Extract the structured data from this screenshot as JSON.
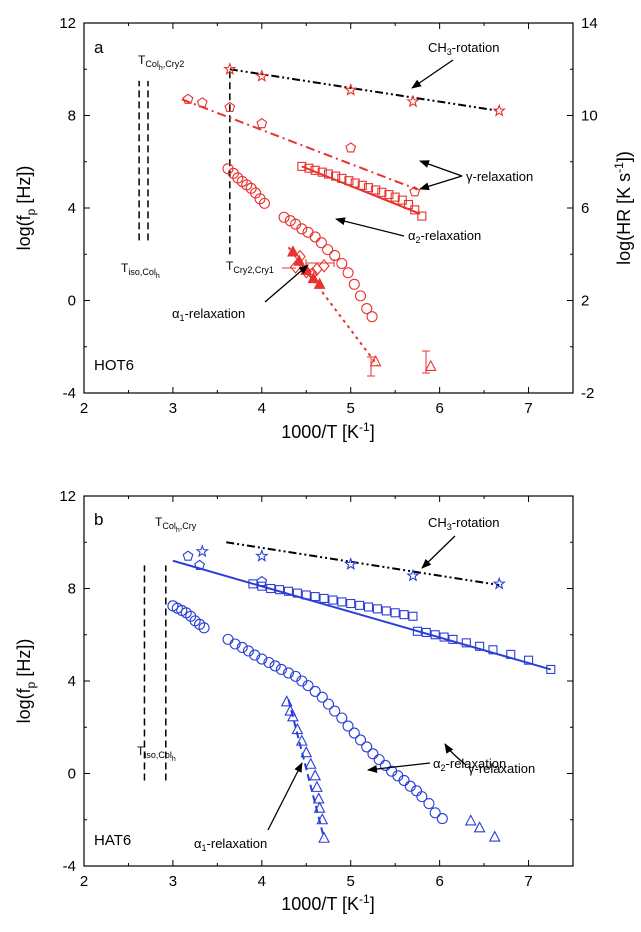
{
  "colors": {
    "hot6": "#e8322e",
    "hat6": "#2b3fd6",
    "black": "#000000"
  },
  "chart_data": [
    {
      "type": "scatter",
      "panel_label": "a",
      "sample": "HOT6",
      "xlabel_main": "1000/T [K",
      "xlabel_sup": "-1",
      "xlabel_end": "]",
      "ylabel_left": "log(f",
      "ylabel_left_sub": "p",
      "ylabel_left_end": " [Hz])",
      "ylabel_right": "log(HR [K s",
      "ylabel_right_sup": "-1",
      "ylabel_right_end": "])",
      "xlim": [
        2,
        7.5
      ],
      "ylim": [
        -4,
        12
      ],
      "y2lim": [
        -2,
        14
      ],
      "xticks": [
        "2",
        "3",
        "4",
        "5",
        "6",
        "7"
      ],
      "yticks": [
        "-4",
        "0",
        "4",
        "8",
        "12"
      ],
      "y2ticks": [
        "-2",
        "2",
        "6",
        "10",
        "14"
      ],
      "series": [
        {
          "marker": "star",
          "fill": false,
          "points": [
            [
              3.64,
              10.0
            ],
            [
              4.0,
              9.7
            ],
            [
              5.0,
              9.1
            ],
            [
              5.7,
              8.6
            ],
            [
              6.67,
              8.2
            ]
          ]
        },
        {
          "marker": "pentagon",
          "fill": false,
          "points": [
            [
              3.17,
              8.7
            ],
            [
              3.33,
              8.55
            ],
            [
              3.64,
              8.35
            ],
            [
              4.0,
              7.65
            ],
            [
              5.0,
              6.6
            ],
            [
              5.72,
              4.7
            ]
          ]
        },
        {
          "marker": "square",
          "fill": false,
          "points": [
            [
              4.45,
              5.8
            ],
            [
              4.53,
              5.72
            ],
            [
              4.6,
              5.63
            ],
            [
              4.68,
              5.55
            ],
            [
              4.75,
              5.47
            ],
            [
              4.83,
              5.38
            ],
            [
              4.9,
              5.28
            ],
            [
              4.98,
              5.18
            ],
            [
              5.05,
              5.08
            ],
            [
              5.13,
              4.98
            ],
            [
              5.2,
              4.88
            ],
            [
              5.28,
              4.78
            ],
            [
              5.35,
              4.68
            ],
            [
              5.43,
              4.58
            ],
            [
              5.5,
              4.47
            ],
            [
              5.58,
              4.34
            ],
            [
              5.65,
              4.15
            ],
            [
              5.72,
              3.92
            ],
            [
              5.8,
              3.65
            ]
          ]
        },
        {
          "marker": "circle",
          "fill": false,
          "points": [
            [
              3.62,
              5.7
            ],
            [
              3.68,
              5.5
            ],
            [
              3.73,
              5.3
            ],
            [
              3.78,
              5.15
            ],
            [
              3.83,
              5.0
            ],
            [
              3.88,
              4.85
            ],
            [
              3.93,
              4.65
            ],
            [
              3.98,
              4.4
            ],
            [
              4.03,
              4.2
            ],
            [
              4.25,
              3.6
            ],
            [
              4.32,
              3.45
            ],
            [
              4.38,
              3.3
            ],
            [
              4.45,
              3.1
            ],
            [
              4.52,
              2.95
            ],
            [
              4.6,
              2.75
            ],
            [
              4.67,
              2.5
            ],
            [
              4.74,
              2.2
            ],
            [
              4.82,
              1.95
            ],
            [
              4.9,
              1.6
            ],
            [
              4.97,
              1.2
            ],
            [
              5.04,
              0.7
            ],
            [
              5.11,
              0.2
            ],
            [
              5.18,
              -0.35
            ],
            [
              5.24,
              -0.7
            ]
          ]
        },
        {
          "marker": "triangle",
          "fill": true,
          "points": [
            [
              4.35,
              2.1
            ],
            [
              4.42,
              1.7
            ],
            [
              4.5,
              1.3
            ],
            [
              4.58,
              0.95
            ],
            [
              4.65,
              0.7
            ]
          ]
        },
        {
          "marker": "diamond",
          "fill": false,
          "points": [
            [
              4.38,
              1.45
            ],
            [
              4.43,
              1.9
            ],
            [
              4.5,
              1.25
            ],
            [
              4.57,
              1.15
            ],
            [
              4.62,
              1.35
            ],
            [
              4.7,
              1.5
            ]
          ]
        },
        {
          "marker": "triangle",
          "fill": false,
          "points": [
            [
              5.28,
              -2.65
            ],
            [
              5.9,
              -2.85
            ]
          ]
        }
      ],
      "fits": [
        {
          "style": "dash-dot-dot",
          "color": "black",
          "points": [
            [
              3.64,
              10.0
            ],
            [
              6.67,
              8.2
            ]
          ]
        },
        {
          "style": "dash-dot",
          "color": "hot6",
          "points": [
            [
              3.1,
              8.7
            ],
            [
              5.75,
              4.8
            ]
          ]
        },
        {
          "style": "solid",
          "color": "hot6",
          "points": [
            [
              4.45,
              5.8
            ],
            [
              5.78,
              3.75
            ]
          ]
        },
        {
          "style": "dotted",
          "color": "hot6",
          "points": [
            [
              4.3,
              2.3
            ],
            [
              5.3,
              -2.8
            ]
          ]
        }
      ],
      "transitions": [
        {
          "label_main": "T",
          "label_sub": "iso,Col",
          "label_subsub": "h",
          "x": 2.62
        },
        {
          "label_main": "T",
          "label_sub": "Col",
          "label_subsub": "h",
          "label_sub2": ",Cry2",
          "x": 2.72
        },
        {
          "label_main": "T",
          "label_sub": "Cry2,Cry1",
          "x": 3.64
        }
      ],
      "annotations": [
        {
          "text": "CH",
          "sub": "3",
          "rest": "-rotation"
        },
        {
          "text": "γ-relaxation"
        },
        {
          "text": "α",
          "sub": "2",
          "rest": "-relaxation"
        },
        {
          "text": "α",
          "sub": "1",
          "rest": "-relaxation"
        }
      ]
    },
    {
      "type": "scatter",
      "panel_label": "b",
      "sample": "HAT6",
      "xlabel_main": "1000/T [K",
      "xlabel_sup": "-1",
      "xlabel_end": "]",
      "ylabel_left": "log(f",
      "ylabel_left_sub": "p",
      "ylabel_left_end": " [Hz])",
      "xlim": [
        2,
        7.5
      ],
      "ylim": [
        -4,
        12
      ],
      "xticks": [
        "2",
        "3",
        "4",
        "5",
        "6",
        "7"
      ],
      "yticks": [
        "-4",
        "0",
        "4",
        "8",
        "12"
      ],
      "series": [
        {
          "marker": "star",
          "fill": false,
          "points": [
            [
              3.33,
              9.6
            ],
            [
              4.0,
              9.4
            ],
            [
              5.0,
              9.05
            ],
            [
              5.7,
              8.55
            ],
            [
              6.67,
              8.2
            ]
          ]
        },
        {
          "marker": "pentagon",
          "fill": false,
          "points": [
            [
              3.17,
              9.4
            ],
            [
              3.3,
              9.0
            ],
            [
              4.0,
              8.3
            ]
          ]
        },
        {
          "marker": "square",
          "fill": false,
          "points": [
            [
              3.9,
              8.2
            ],
            [
              4.0,
              8.1
            ],
            [
              4.1,
              8.0
            ],
            [
              4.2,
              7.95
            ],
            [
              4.3,
              7.88
            ],
            [
              4.4,
              7.8
            ],
            [
              4.5,
              7.72
            ],
            [
              4.6,
              7.65
            ],
            [
              4.7,
              7.57
            ],
            [
              4.8,
              7.5
            ],
            [
              4.9,
              7.42
            ],
            [
              5.0,
              7.35
            ],
            [
              5.1,
              7.27
            ],
            [
              5.2,
              7.2
            ],
            [
              5.3,
              7.12
            ],
            [
              5.4,
              7.03
            ],
            [
              5.5,
              6.95
            ],
            [
              5.6,
              6.87
            ],
            [
              5.7,
              6.8
            ],
            [
              5.75,
              6.15
            ],
            [
              5.85,
              6.1
            ],
            [
              5.95,
              6.0
            ],
            [
              6.05,
              5.9
            ],
            [
              6.15,
              5.8
            ],
            [
              6.3,
              5.65
            ],
            [
              6.45,
              5.5
            ],
            [
              6.6,
              5.35
            ],
            [
              6.8,
              5.15
            ],
            [
              7.0,
              4.9
            ],
            [
              7.25,
              4.5
            ]
          ]
        },
        {
          "marker": "circle",
          "fill": false,
          "points": [
            [
              3.0,
              7.25
            ],
            [
              3.05,
              7.15
            ],
            [
              3.1,
              7.05
            ],
            [
              3.15,
              6.95
            ],
            [
              3.2,
              6.8
            ],
            [
              3.25,
              6.6
            ],
            [
              3.3,
              6.45
            ],
            [
              3.35,
              6.3
            ],
            [
              3.62,
              5.8
            ],
            [
              3.7,
              5.6
            ],
            [
              3.78,
              5.45
            ],
            [
              3.85,
              5.3
            ],
            [
              3.92,
              5.12
            ],
            [
              4.0,
              4.95
            ],
            [
              4.08,
              4.8
            ],
            [
              4.15,
              4.65
            ],
            [
              4.22,
              4.5
            ],
            [
              4.3,
              4.35
            ],
            [
              4.38,
              4.2
            ],
            [
              4.45,
              4.0
            ],
            [
              4.52,
              3.8
            ],
            [
              4.6,
              3.55
            ],
            [
              4.68,
              3.3
            ],
            [
              4.75,
              3.0
            ],
            [
              4.82,
              2.7
            ],
            [
              4.9,
              2.4
            ],
            [
              4.97,
              2.05
            ],
            [
              5.04,
              1.75
            ],
            [
              5.11,
              1.45
            ],
            [
              5.18,
              1.15
            ],
            [
              5.25,
              0.85
            ],
            [
              5.32,
              0.6
            ],
            [
              5.39,
              0.35
            ],
            [
              5.46,
              0.1
            ],
            [
              5.53,
              -0.1
            ],
            [
              5.6,
              -0.3
            ],
            [
              5.67,
              -0.55
            ],
            [
              5.74,
              -0.75
            ],
            [
              5.8,
              -1.0
            ],
            [
              5.88,
              -1.3
            ],
            [
              5.95,
              -1.7
            ],
            [
              6.03,
              -1.95
            ]
          ]
        },
        {
          "marker": "triangle",
          "fill": false,
          "points": [
            [
              4.28,
              3.1
            ],
            [
              4.32,
              2.7
            ],
            [
              4.35,
              2.45
            ],
            [
              4.4,
              1.9
            ],
            [
              4.45,
              1.4
            ],
            [
              4.5,
              0.9
            ],
            [
              4.55,
              0.4
            ],
            [
              4.6,
              -0.1
            ],
            [
              4.62,
              -0.6
            ],
            [
              4.64,
              -1.1
            ],
            [
              4.65,
              -1.5
            ],
            [
              4.68,
              -2.0
            ],
            [
              4.7,
              -2.8
            ]
          ]
        },
        {
          "marker": "triangle",
          "fill": false,
          "points": [
            [
              6.35,
              -2.05
            ],
            [
              6.45,
              -2.35
            ],
            [
              6.62,
              -2.75
            ]
          ]
        }
      ],
      "fits": [
        {
          "style": "dash-dot-dot",
          "color": "black",
          "points": [
            [
              3.6,
              10.0
            ],
            [
              6.67,
              8.15
            ]
          ]
        },
        {
          "style": "solid",
          "color": "hat6",
          "points": [
            [
              3.0,
              9.2
            ],
            [
              7.25,
              4.5
            ]
          ]
        },
        {
          "style": "dashed",
          "color": "hat6",
          "points": [
            [
              4.3,
              3.2
            ],
            [
              4.7,
              -2.8
            ]
          ]
        }
      ],
      "transitions": [
        {
          "label_main": "T",
          "label_sub": "iso,Col",
          "label_subsub": "h",
          "x": 2.68
        },
        {
          "label_main": "T",
          "label_sub": "Col",
          "label_subsub": "h",
          "label_sub2": ",Cry",
          "x": 2.92
        }
      ],
      "annotations": [
        {
          "text": "CH",
          "sub": "3",
          "rest": "-rotation"
        },
        {
          "text": "γ-relaxation"
        },
        {
          "text": "α",
          "sub": "2",
          "rest": "-relaxation"
        },
        {
          "text": "α",
          "sub": "1",
          "rest": "-relaxation"
        }
      ]
    }
  ]
}
